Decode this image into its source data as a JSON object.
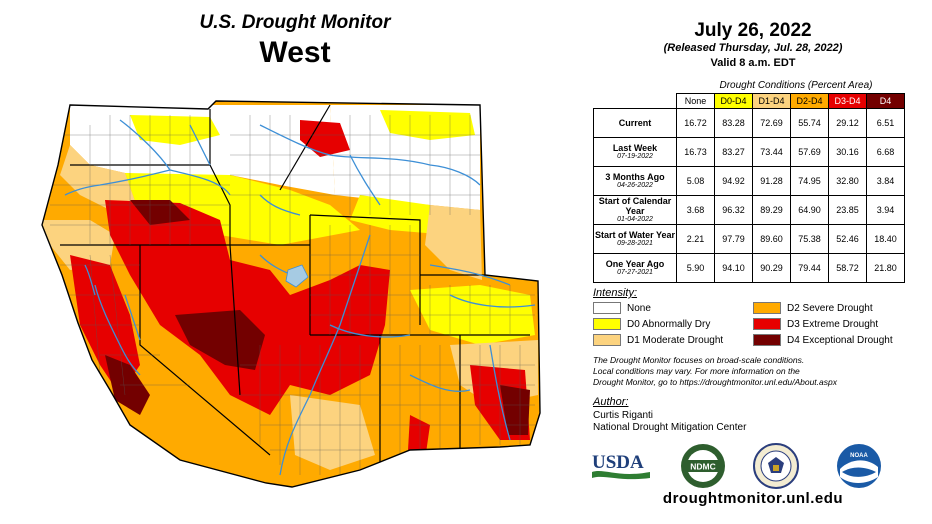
{
  "title": {
    "line1": "U.S. Drought Monitor",
    "line2": "West"
  },
  "header": {
    "date": "July 26, 2022",
    "released": "(Released Thursday, Jul. 28, 2022)",
    "valid": "Valid 8 a.m. EDT"
  },
  "table": {
    "caption": "Drought Conditions (Percent Area)",
    "columns": [
      {
        "label": "None",
        "color": "#ffffff",
        "text": "#000000"
      },
      {
        "label": "D0-D4",
        "color": "#ffff00",
        "text": "#000000"
      },
      {
        "label": "D1-D4",
        "color": "#fcd37f",
        "text": "#000000"
      },
      {
        "label": "D2-D4",
        "color": "#ffaa00",
        "text": "#000000"
      },
      {
        "label": "D3-D4",
        "color": "#e60000",
        "text": "#ffffff"
      },
      {
        "label": "D4",
        "color": "#730000",
        "text": "#ffffff"
      }
    ],
    "rows": [
      {
        "label": "Current",
        "sublabel": "",
        "values": [
          "16.72",
          "83.28",
          "72.69",
          "55.74",
          "29.12",
          "6.51"
        ]
      },
      {
        "label": "Last Week",
        "sublabel": "07-19-2022",
        "values": [
          "16.73",
          "83.27",
          "73.44",
          "57.69",
          "30.16",
          "6.68"
        ]
      },
      {
        "label": "3 Months Ago",
        "sublabel": "04-26-2022",
        "values": [
          "5.08",
          "94.92",
          "91.28",
          "74.95",
          "32.80",
          "3.84"
        ]
      },
      {
        "label": "Start of Calendar Year",
        "sublabel": "01-04-2022",
        "values": [
          "3.68",
          "96.32",
          "89.29",
          "64.90",
          "23.85",
          "3.94"
        ]
      },
      {
        "label": "Start of Water Year",
        "sublabel": "09-28-2021",
        "values": [
          "2.21",
          "97.79",
          "89.60",
          "75.38",
          "52.46",
          "18.40"
        ]
      },
      {
        "label": "One Year Ago",
        "sublabel": "07-27-2021",
        "values": [
          "5.90",
          "94.10",
          "90.29",
          "79.44",
          "58.72",
          "21.80"
        ]
      }
    ]
  },
  "legend": {
    "title": "Intensity:",
    "items": [
      {
        "label": "None",
        "color": "#ffffff"
      },
      {
        "label": "D0 Abnormally Dry",
        "color": "#ffff00"
      },
      {
        "label": "D1 Moderate Drought",
        "color": "#fcd37f"
      },
      {
        "label": "D2 Severe Drought",
        "color": "#ffaa00"
      },
      {
        "label": "D3 Extreme Drought",
        "color": "#e60000"
      },
      {
        "label": "D4 Exceptional Drought",
        "color": "#730000"
      }
    ]
  },
  "note": {
    "line1": "The Drought Monitor focuses on broad-scale conditions.",
    "line2": "Local conditions may vary. For more information on the",
    "line3": "Drought Monitor, go to https://droughtmonitor.unl.edu/About.aspx"
  },
  "author": {
    "title": "Author:",
    "name": "Curtis Riganti",
    "org": "National Drought Mitigation Center"
  },
  "logos": {
    "usda": "USDA",
    "ndmc": "NDMC",
    "noaa": "NOAA"
  },
  "url": "droughtmonitor.unl.edu",
  "map_colors": {
    "river": "#3d8fd6",
    "border": "#000000",
    "county": "#555555"
  }
}
